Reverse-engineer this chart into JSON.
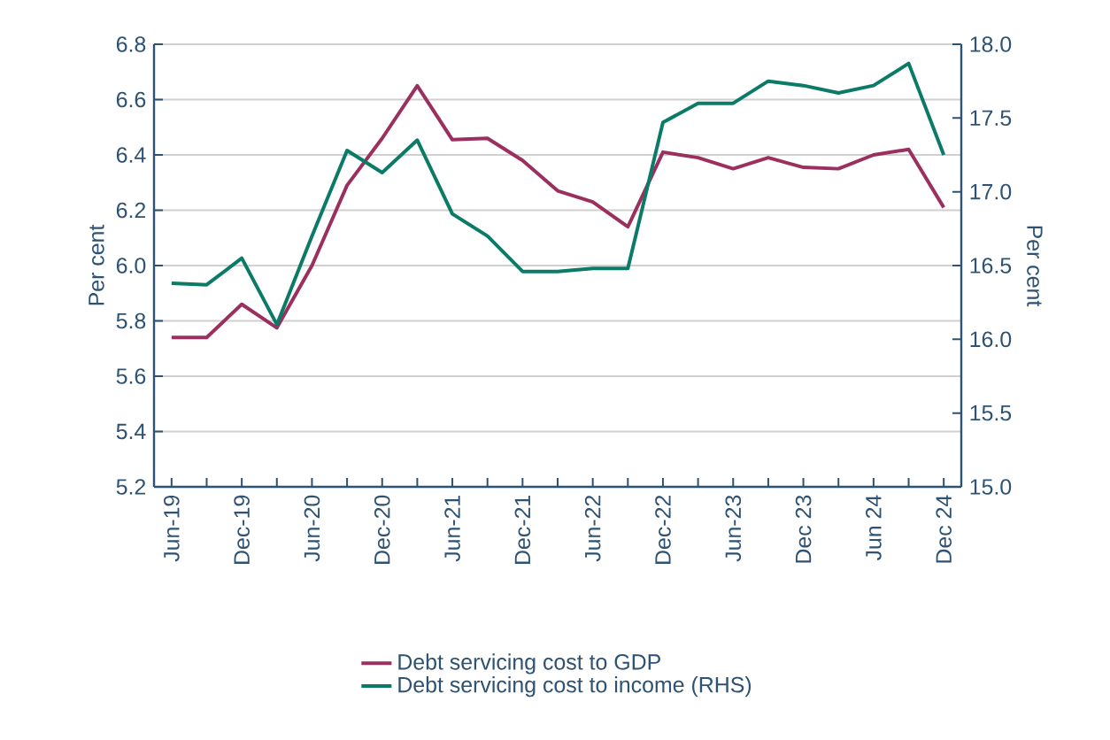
{
  "chart_data": {
    "type": "line",
    "ylabel": "Per cent",
    "y2label": "Per cent",
    "categories": [
      "Jun-19",
      null,
      "Dec-19",
      null,
      "Jun-20",
      null,
      "Dec-20",
      null,
      "Jun-21",
      null,
      "Dec-21",
      null,
      "Jun-22",
      null,
      "Dec-22",
      null,
      "Jun-23",
      null,
      "Dec 23",
      null,
      "Jun 24",
      null,
      "Dec 24"
    ],
    "series": [
      {
        "name": "Debt servicing cost to GDP",
        "color": "#9b2f5e",
        "values": [
          5.74,
          5.74,
          5.86,
          5.775,
          6.0,
          6.29,
          6.46,
          6.65,
          6.455,
          6.46,
          6.38,
          6.27,
          6.23,
          6.14,
          6.41,
          6.39,
          6.35,
          6.39,
          6.355,
          6.35,
          6.4,
          6.42,
          6.21
        ]
      },
      {
        "name": "Debt servicing cost to income (RHS)",
        "color": "#0b7a66",
        "axis": "y2",
        "values": [
          16.38,
          16.37,
          16.55,
          16.1,
          16.7,
          17.28,
          17.13,
          17.35,
          16.85,
          16.7,
          16.46,
          16.46,
          16.48,
          16.48,
          17.47,
          17.6,
          17.6,
          17.75,
          17.72,
          17.67,
          17.72,
          17.87,
          17.25
        ]
      }
    ],
    "ylim": [
      5.2,
      6.8
    ],
    "yticks": [
      5.2,
      5.4,
      5.6,
      5.8,
      {
        "value": 6.0,
        "label": "6.0"
      },
      6.2,
      6.4,
      6.6,
      6.8
    ],
    "y2lim": [
      15.0,
      18.0
    ],
    "y2ticks": [
      {
        "value": 15.0,
        "label": "15.0"
      },
      15.5,
      {
        "value": 16.0,
        "label": "16.0"
      },
      16.5,
      {
        "value": 17.0,
        "label": "17.0"
      },
      17.5,
      {
        "value": 18.0,
        "label": "18.0"
      }
    ],
    "grid": "y",
    "legend": "bottom"
  }
}
